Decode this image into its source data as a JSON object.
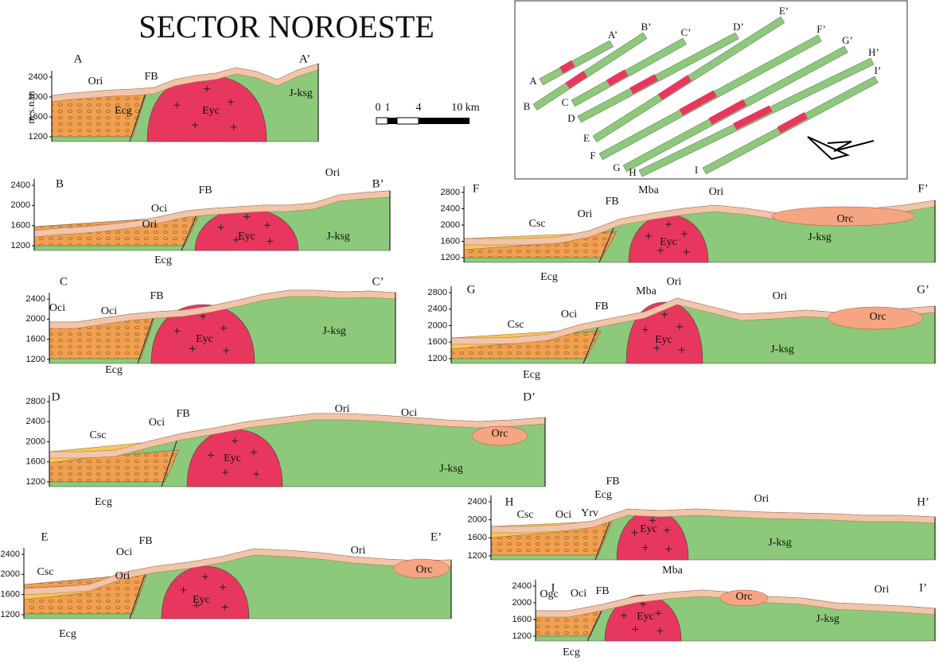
{
  "title": "SECTOR NOROESTE",
  "y_axis_label": "m s.n.m",
  "scale_bar": {
    "labels": [
      "0",
      "1",
      "4",
      "10 km"
    ]
  },
  "sections": [
    {
      "start": "A",
      "end": "A’",
      "ticks": [
        2400,
        2000,
        1600,
        1200
      ],
      "labels": [
        "Ori",
        "FB",
        "Ecg",
        "Eyc",
        "J-ksg"
      ]
    },
    {
      "start": "B",
      "end": "B’",
      "ticks": [
        2400,
        2000,
        1600,
        1200
      ],
      "labels": [
        "Ori",
        "Oci",
        "FB",
        "Ori",
        "Eyc",
        "J-ksg",
        "Ecg"
      ]
    },
    {
      "start": "C",
      "end": "C’",
      "ticks": [
        2400,
        2000,
        1600,
        1200
      ],
      "labels": [
        "Oci",
        "Oci",
        "FB",
        "Eyc",
        "J-ksg",
        "Ecg"
      ]
    },
    {
      "start": "D",
      "end": "D’",
      "ticks": [
        2800,
        2400,
        2000,
        1600,
        1200
      ],
      "labels": [
        "Csc",
        "Oci",
        "FB",
        "Ori",
        "Oci",
        "Eyc",
        "Orc",
        "J-ksg",
        "Ecg"
      ]
    },
    {
      "start": "E",
      "end": "E’",
      "ticks": [
        2400,
        2000,
        1600,
        1200
      ],
      "labels": [
        "Csc",
        "Oci",
        "FB",
        "Ori",
        "Ori",
        "Orc",
        "Eyc",
        "Ecg"
      ]
    },
    {
      "start": "F",
      "end": "F’",
      "ticks": [
        2800,
        2400,
        2000,
        1600,
        1200
      ],
      "labels": [
        "Mba",
        "Ori",
        "Csc",
        "Ori",
        "FB",
        "Eyc",
        "Orc",
        "J-ksg",
        "Ecg"
      ]
    },
    {
      "start": "G",
      "end": "G’",
      "ticks": [
        2800,
        2400,
        2000,
        1600,
        1200
      ],
      "labels": [
        "Mba",
        "Ori",
        "Csc",
        "Oci",
        "FB",
        "Ori",
        "Orc",
        "Eyc",
        "J-ksg",
        "Ecg"
      ]
    },
    {
      "start": "H",
      "end": "H’",
      "ticks": [
        2400,
        2000,
        1600,
        1200
      ],
      "labels": [
        "FB",
        "Ecg",
        "Csc",
        "Oci",
        "Yrv",
        "Ori",
        "Eyc",
        "J-ksg"
      ]
    },
    {
      "start": "I",
      "end": "I’",
      "ticks": [
        2400,
        2000,
        1600,
        1200
      ],
      "labels": [
        "Mba",
        "FB",
        "Ogc",
        "Oci",
        "Orc",
        "Ori",
        "Eyc",
        "J-ksg",
        "Ecg"
      ]
    }
  ]
}
